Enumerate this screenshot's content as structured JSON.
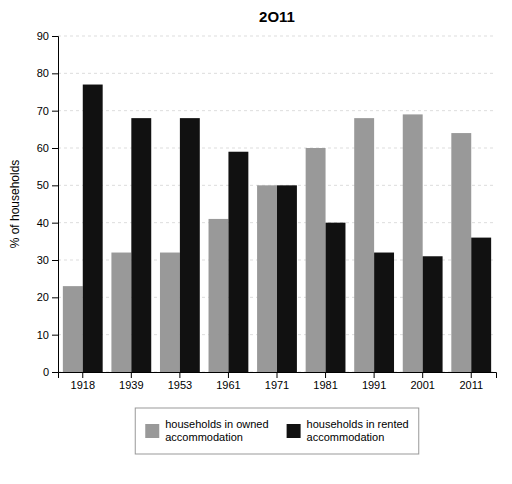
{
  "chart_data": {
    "type": "bar",
    "title": "2O11",
    "y_label": "% of households",
    "categories": [
      "1918",
      "1939",
      "1953",
      "1961",
      "1971",
      "1981",
      "1991",
      "2001",
      "2011"
    ],
    "series": [
      {
        "name": "households in owned\naccommodation",
        "color": "#999999",
        "values": [
          23,
          32,
          32,
          41,
          50,
          60,
          68,
          69,
          64
        ]
      },
      {
        "name": "households in rented\naccommodation",
        "color": "#111111",
        "values": [
          77,
          68,
          68,
          59,
          50,
          40,
          32,
          31,
          36
        ]
      }
    ],
    "ylim": [
      0,
      90
    ],
    "yticks": [
      0,
      10,
      20,
      30,
      40,
      50,
      60,
      70,
      80,
      90
    ],
    "grid": true,
    "legend": "bottom"
  }
}
